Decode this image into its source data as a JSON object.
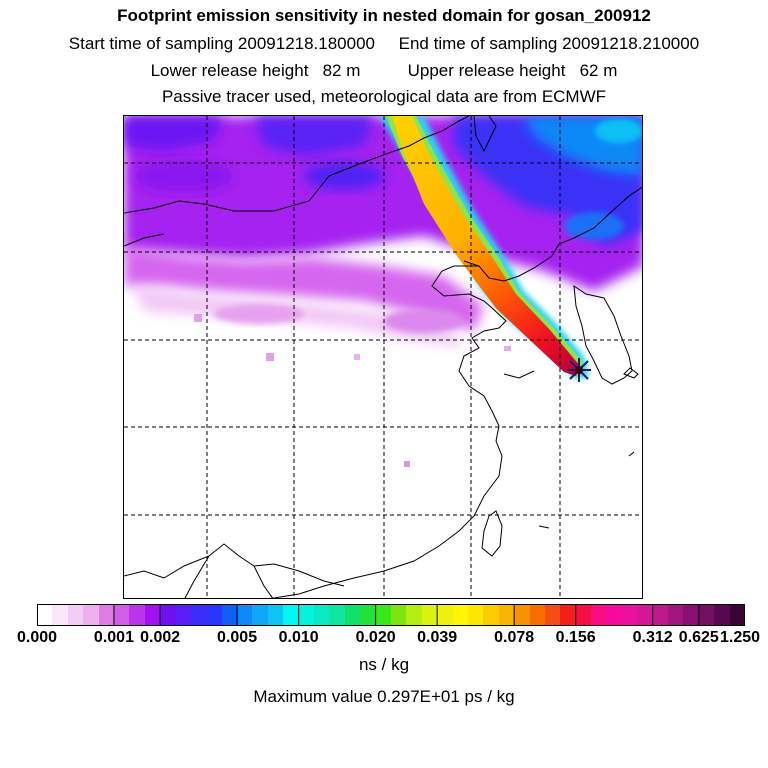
{
  "header": {
    "title": "Footprint emission sensitivity in nested domain for gosan_200912",
    "sampling": "Start time of sampling 20091218.180000     End time of sampling 20091218.210000",
    "release": "Lower release height   82 m          Upper release height   62 m",
    "tracer": "Passive tracer used, meteorological data are from ECMWF"
  },
  "colorbar": {
    "colors": [
      "#ffffff",
      "#fbe6fb",
      "#f5ccf5",
      "#efb0ef",
      "#e07ae8",
      "#d25ee8",
      "#bc34ea",
      "#a20ff0",
      "#6f10f0",
      "#5a1ef4",
      "#3a2df8",
      "#2a35fa",
      "#1060f7",
      "#1188f7",
      "#11a6f7",
      "#10c3f5",
      "#00f7f3",
      "#06f2dc",
      "#0ae8c4",
      "#10e5a2",
      "#12e06a",
      "#21e23a",
      "#38e81c",
      "#7ce40e",
      "#b7ec10",
      "#dbf111",
      "#eff012",
      "#fff505",
      "#fde600",
      "#fccb00",
      "#fbb300",
      "#f99200",
      "#f86d00",
      "#f64e12",
      "#f2201d",
      "#f60f45",
      "#fb0b82",
      "#f40a9e",
      "#e8129e",
      "#d31896",
      "#bc1a8c",
      "#a11580",
      "#8a0f73",
      "#731062",
      "#560850",
      "#3a0533"
    ],
    "group_sizes": [
      5,
      3,
      5,
      4,
      5,
      4,
      5,
      4,
      5,
      3,
      3
    ],
    "labels": [
      "0.000",
      "0.001",
      "0.002",
      "0.005",
      "0.010",
      "0.020",
      "0.039",
      "0.078",
      "0.156",
      "0.312",
      "0.625",
      "1.250"
    ],
    "unit": "ns / kg"
  },
  "maximum": "Maximum value  0.297E+01 ps / kg",
  "map": {
    "receptor_marker": "x-star-marker"
  }
}
